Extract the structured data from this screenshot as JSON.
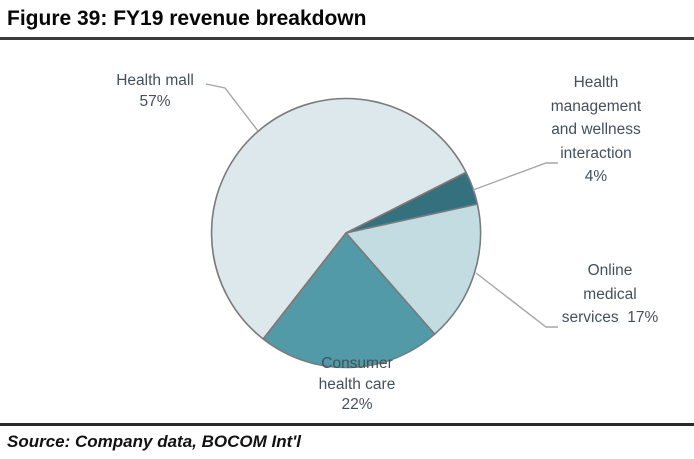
{
  "figure_title": "Figure 39: FY19 revenue breakdown",
  "source_note": "Source: Company data, BOCOM Int'l",
  "chart_data": {
    "type": "pie",
    "title": "FY19 revenue breakdown",
    "value_unit": "%",
    "start_angle_deg": 218,
    "clockwise": true,
    "legend_position": "callout-labels",
    "stroke_color": "#7a7a7a",
    "leader_line_color": "#a6a6a6",
    "slices": [
      {
        "label": "Health mall",
        "value": 57,
        "color": "#dce8ec",
        "label_lines": [
          "Health mall",
          "57%"
        ]
      },
      {
        "label": "Health management and wellness interaction",
        "value": 4,
        "color": "#35707f",
        "label_lines": [
          "Health",
          "management",
          "and wellness",
          "interaction",
          "4%"
        ]
      },
      {
        "label": "Online medical services",
        "value": 17,
        "color": "#c3dce1",
        "label_lines": [
          "Online",
          "medical",
          "services  17%"
        ]
      },
      {
        "label": "Consumer health care",
        "value": 22,
        "color": "#529aa8",
        "label_lines": [
          "Consumer",
          "health care",
          "22%"
        ]
      }
    ]
  }
}
